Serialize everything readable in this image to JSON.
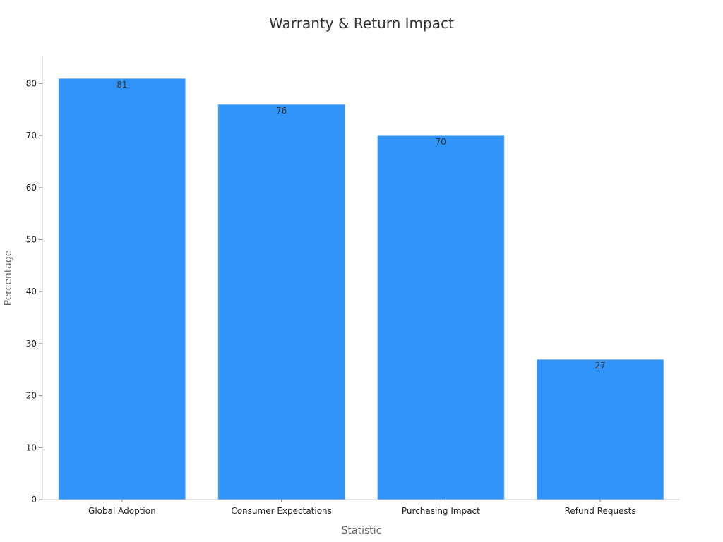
{
  "chart_data": {
    "type": "bar",
    "title": "Warranty & Return Impact",
    "xlabel": "Statistic",
    "ylabel": "Percentage",
    "categories": [
      "Global Adoption",
      "Consumer Expectations",
      "Purchasing Impact",
      "Refund Requests"
    ],
    "values": [
      81,
      76,
      70,
      27
    ],
    "data_labels": [
      "81",
      "76",
      "70",
      "27"
    ],
    "ylim": [
      0,
      85
    ],
    "yticks": [
      0,
      10,
      20,
      30,
      40,
      50,
      60,
      70,
      80
    ],
    "ytick_labels": [
      "0",
      "10",
      "20",
      "30",
      "40",
      "50",
      "60",
      "70",
      "80"
    ],
    "grid": false,
    "legend": "none",
    "colors": {
      "bar": "#2f93f8",
      "bar_edge": "#d6e8fb"
    }
  }
}
